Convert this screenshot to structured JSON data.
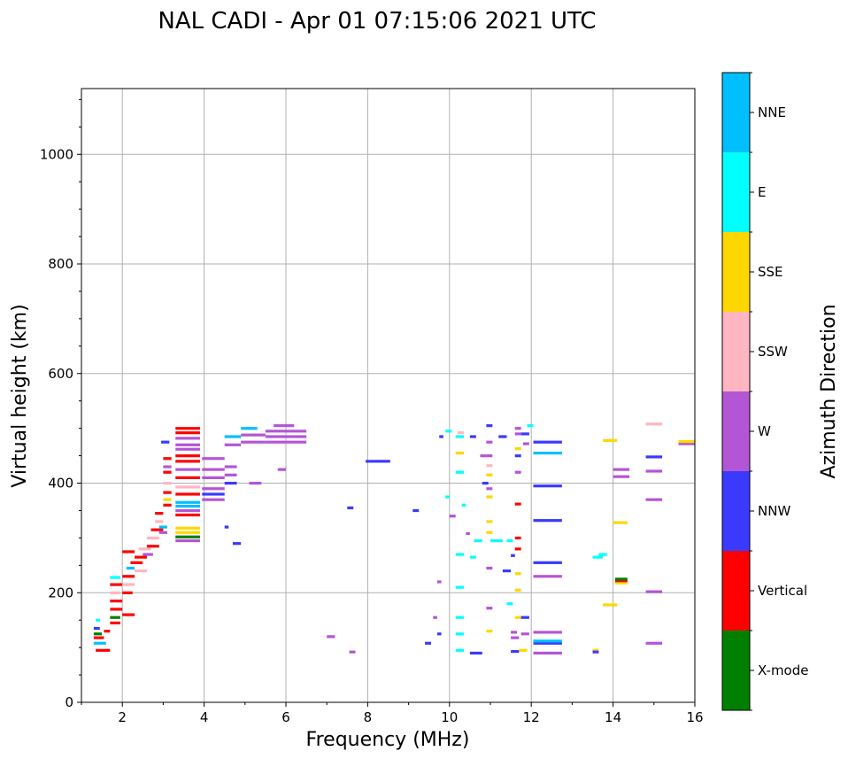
{
  "chart_data": {
    "type": "scatter",
    "title": "NAL CADI - Apr 01 07:15:06 2021 UTC",
    "xlabel": "Frequency (MHz)",
    "ylabel": "Virtual height (km)",
    "xlim": [
      1,
      16
    ],
    "ylim": [
      0,
      1120
    ],
    "xticks": [
      2,
      4,
      6,
      8,
      10,
      12,
      14,
      16
    ],
    "yticks": [
      0,
      200,
      400,
      600,
      800,
      1000
    ],
    "grid": true,
    "colorbar": {
      "label": "Azimuth Direction",
      "categories": [
        {
          "name": "X-mode",
          "color": "#008000"
        },
        {
          "name": "Vertical",
          "color": "#ff0000"
        },
        {
          "name": "NNW",
          "color": "#3a3aff"
        },
        {
          "name": "W",
          "color": "#b455d6"
        },
        {
          "name": "SSW",
          "color": "#ffb6c1"
        },
        {
          "name": "SSE",
          "color": "#ffd700"
        },
        {
          "name": "E",
          "color": "#00ffff"
        },
        {
          "name": "NNE",
          "color": "#00bfff"
        }
      ]
    },
    "segments": [
      {
        "f0": 1.35,
        "f1": 1.7,
        "h": 95,
        "c": "Vertical"
      },
      {
        "f0": 1.3,
        "f1": 1.6,
        "h": 108,
        "c": "NNE"
      },
      {
        "f0": 1.3,
        "f1": 1.55,
        "h": 118,
        "c": "Vertical"
      },
      {
        "f0": 1.3,
        "f1": 1.5,
        "h": 125,
        "c": "X-mode"
      },
      {
        "f0": 1.3,
        "f1": 1.45,
        "h": 135,
        "c": "NNW"
      },
      {
        "f0": 1.55,
        "f1": 1.7,
        "h": 130,
        "c": "Vertical"
      },
      {
        "f0": 1.35,
        "f1": 1.45,
        "h": 150,
        "c": "E"
      },
      {
        "f0": 1.7,
        "f1": 1.95,
        "h": 145,
        "c": "Vertical"
      },
      {
        "f0": 1.7,
        "f1": 1.95,
        "h": 155,
        "c": "X-mode"
      },
      {
        "f0": 1.7,
        "f1": 2.0,
        "h": 170,
        "c": "Vertical"
      },
      {
        "f0": 1.7,
        "f1": 2.0,
        "h": 185,
        "c": "Vertical"
      },
      {
        "f0": 1.7,
        "f1": 1.95,
        "h": 200,
        "c": "SSW"
      },
      {
        "f0": 1.7,
        "f1": 2.0,
        "h": 215,
        "c": "Vertical"
      },
      {
        "f0": 1.7,
        "f1": 1.95,
        "h": 228,
        "c": "E"
      },
      {
        "f0": 2.0,
        "f1": 2.3,
        "h": 160,
        "c": "Vertical"
      },
      {
        "f0": 2.0,
        "f1": 2.25,
        "h": 200,
        "c": "Vertical"
      },
      {
        "f0": 2.0,
        "f1": 2.3,
        "h": 215,
        "c": "SSW"
      },
      {
        "f0": 2.0,
        "f1": 2.3,
        "h": 230,
        "c": "Vertical"
      },
      {
        "f0": 2.1,
        "f1": 2.3,
        "h": 245,
        "c": "NNE"
      },
      {
        "f0": 2.2,
        "f1": 2.5,
        "h": 255,
        "c": "Vertical"
      },
      {
        "f0": 2.3,
        "f1": 2.6,
        "h": 240,
        "c": "SSW"
      },
      {
        "f0": 2.0,
        "f1": 2.3,
        "h": 275,
        "c": "Vertical"
      },
      {
        "f0": 2.3,
        "f1": 2.6,
        "h": 265,
        "c": "Vertical"
      },
      {
        "f0": 2.4,
        "f1": 2.7,
        "h": 280,
        "c": "SSW"
      },
      {
        "f0": 2.5,
        "f1": 2.75,
        "h": 270,
        "c": "W"
      },
      {
        "f0": 2.6,
        "f1": 2.9,
        "h": 285,
        "c": "Vertical"
      },
      {
        "f0": 2.6,
        "f1": 2.9,
        "h": 300,
        "c": "SSW"
      },
      {
        "f0": 2.7,
        "f1": 3.0,
        "h": 315,
        "c": "Vertical"
      },
      {
        "f0": 2.8,
        "f1": 3.0,
        "h": 330,
        "c": "SSW"
      },
      {
        "f0": 2.8,
        "f1": 3.0,
        "h": 345,
        "c": "Vertical"
      },
      {
        "f0": 2.9,
        "f1": 3.1,
        "h": 310,
        "c": "W"
      },
      {
        "f0": 2.9,
        "f1": 3.1,
        "h": 320,
        "c": "NNE"
      },
      {
        "f0": 3.0,
        "f1": 3.2,
        "h": 360,
        "c": "Vertical"
      },
      {
        "f0": 3.0,
        "f1": 3.2,
        "h": 370,
        "c": "SSE"
      },
      {
        "f0": 3.0,
        "f1": 3.2,
        "h": 383,
        "c": "Vertical"
      },
      {
        "f0": 3.0,
        "f1": 3.2,
        "h": 400,
        "c": "SSW"
      },
      {
        "f0": 3.0,
        "f1": 3.2,
        "h": 420,
        "c": "Vertical"
      },
      {
        "f0": 3.0,
        "f1": 3.2,
        "h": 430,
        "c": "W"
      },
      {
        "f0": 3.0,
        "f1": 3.2,
        "h": 445,
        "c": "Vertical"
      },
      {
        "f0": 2.95,
        "f1": 3.15,
        "h": 475,
        "c": "NNW"
      },
      {
        "f0": 3.3,
        "f1": 3.9,
        "h": 295,
        "c": "W"
      },
      {
        "f0": 3.3,
        "f1": 3.9,
        "h": 302,
        "c": "X-mode"
      },
      {
        "f0": 3.3,
        "f1": 3.9,
        "h": 310,
        "c": "SSE"
      },
      {
        "f0": 3.3,
        "f1": 3.9,
        "h": 318,
        "c": "SSE"
      },
      {
        "f0": 3.3,
        "f1": 3.9,
        "h": 342,
        "c": "Vertical"
      },
      {
        "f0": 3.3,
        "f1": 3.9,
        "h": 350,
        "c": "W"
      },
      {
        "f0": 3.3,
        "f1": 3.9,
        "h": 358,
        "c": "NNE"
      },
      {
        "f0": 3.3,
        "f1": 3.9,
        "h": 365,
        "c": "NNE"
      },
      {
        "f0": 3.3,
        "f1": 3.9,
        "h": 380,
        "c": "Vertical"
      },
      {
        "f0": 3.3,
        "f1": 3.9,
        "h": 393,
        "c": "SSW"
      },
      {
        "f0": 3.3,
        "f1": 3.9,
        "h": 410,
        "c": "Vertical"
      },
      {
        "f0": 3.3,
        "f1": 3.9,
        "h": 425,
        "c": "W"
      },
      {
        "f0": 3.3,
        "f1": 3.9,
        "h": 440,
        "c": "Vertical"
      },
      {
        "f0": 3.3,
        "f1": 3.9,
        "h": 450,
        "c": "Vertical"
      },
      {
        "f0": 3.3,
        "f1": 3.9,
        "h": 462,
        "c": "W"
      },
      {
        "f0": 3.3,
        "f1": 3.9,
        "h": 470,
        "c": "W"
      },
      {
        "f0": 3.3,
        "f1": 3.9,
        "h": 482,
        "c": "W"
      },
      {
        "f0": 3.3,
        "f1": 3.9,
        "h": 492,
        "c": "Vertical"
      },
      {
        "f0": 3.3,
        "f1": 3.9,
        "h": 500,
        "c": "Vertical"
      },
      {
        "f0": 3.95,
        "f1": 4.5,
        "h": 370,
        "c": "W"
      },
      {
        "f0": 3.95,
        "f1": 4.5,
        "h": 380,
        "c": "NNW"
      },
      {
        "f0": 3.95,
        "f1": 4.5,
        "h": 390,
        "c": "W"
      },
      {
        "f0": 3.95,
        "f1": 4.5,
        "h": 410,
        "c": "W"
      },
      {
        "f0": 3.95,
        "f1": 4.5,
        "h": 425,
        "c": "W"
      },
      {
        "f0": 3.95,
        "f1": 4.5,
        "h": 445,
        "c": "W"
      },
      {
        "f0": 4.5,
        "f1": 4.8,
        "h": 400,
        "c": "NNW"
      },
      {
        "f0": 4.5,
        "f1": 4.8,
        "h": 415,
        "c": "W"
      },
      {
        "f0": 4.5,
        "f1": 4.8,
        "h": 430,
        "c": "W"
      },
      {
        "f0": 4.5,
        "f1": 4.9,
        "h": 470,
        "c": "W"
      },
      {
        "f0": 4.5,
        "f1": 4.9,
        "h": 485,
        "c": "NNE"
      },
      {
        "f0": 4.7,
        "f1": 4.9,
        "h": 290,
        "c": "NNW"
      },
      {
        "f0": 4.5,
        "f1": 4.6,
        "h": 320,
        "c": "NNW"
      },
      {
        "f0": 4.9,
        "f1": 5.5,
        "h": 475,
        "c": "W"
      },
      {
        "f0": 4.9,
        "f1": 5.5,
        "h": 488,
        "c": "W"
      },
      {
        "f0": 4.9,
        "f1": 5.3,
        "h": 500,
        "c": "NNE"
      },
      {
        "f0": 5.5,
        "f1": 6.5,
        "h": 475,
        "c": "W"
      },
      {
        "f0": 5.5,
        "f1": 6.5,
        "h": 485,
        "c": "W"
      },
      {
        "f0": 5.5,
        "f1": 6.5,
        "h": 495,
        "c": "W"
      },
      {
        "f0": 5.7,
        "f1": 6.2,
        "h": 505,
        "c": "W"
      },
      {
        "f0": 5.1,
        "f1": 5.4,
        "h": 400,
        "c": "W"
      },
      {
        "f0": 5.8,
        "f1": 6.0,
        "h": 425,
        "c": "W"
      },
      {
        "f0": 7.0,
        "f1": 7.2,
        "h": 120,
        "c": "W"
      },
      {
        "f0": 7.55,
        "f1": 7.7,
        "h": 92,
        "c": "W"
      },
      {
        "f0": 7.5,
        "f1": 7.65,
        "h": 355,
        "c": "NNW"
      },
      {
        "f0": 7.95,
        "f1": 8.55,
        "h": 440,
        "c": "NNW"
      },
      {
        "f0": 9.1,
        "f1": 9.25,
        "h": 350,
        "c": "NNW"
      },
      {
        "f0": 9.4,
        "f1": 9.55,
        "h": 108,
        "c": "NNW"
      },
      {
        "f0": 9.6,
        "f1": 9.7,
        "h": 155,
        "c": "W"
      },
      {
        "f0": 9.7,
        "f1": 9.8,
        "h": 220,
        "c": "W"
      },
      {
        "f0": 9.75,
        "f1": 9.85,
        "h": 485,
        "c": "NNW"
      },
      {
        "f0": 9.7,
        "f1": 9.8,
        "h": 125,
        "c": "NNW"
      },
      {
        "f0": 9.9,
        "f1": 10.0,
        "h": 375,
        "c": "E"
      },
      {
        "f0": 9.9,
        "f1": 10.05,
        "h": 495,
        "c": "E"
      },
      {
        "f0": 10.0,
        "f1": 10.15,
        "h": 340,
        "c": "W"
      },
      {
        "f0": 10.15,
        "f1": 10.35,
        "h": 95,
        "c": "E"
      },
      {
        "f0": 10.15,
        "f1": 10.35,
        "h": 125,
        "c": "E"
      },
      {
        "f0": 10.15,
        "f1": 10.35,
        "h": 155,
        "c": "E"
      },
      {
        "f0": 10.15,
        "f1": 10.35,
        "h": 210,
        "c": "E"
      },
      {
        "f0": 10.15,
        "f1": 10.35,
        "h": 270,
        "c": "E"
      },
      {
        "f0": 10.15,
        "f1": 10.35,
        "h": 420,
        "c": "E"
      },
      {
        "f0": 10.15,
        "f1": 10.35,
        "h": 455,
        "c": "SSE"
      },
      {
        "f0": 10.15,
        "f1": 10.35,
        "h": 485,
        "c": "E"
      },
      {
        "f0": 10.2,
        "f1": 10.35,
        "h": 492,
        "c": "SSW"
      },
      {
        "f0": 10.3,
        "f1": 10.4,
        "h": 360,
        "c": "E"
      },
      {
        "f0": 10.4,
        "f1": 10.5,
        "h": 308,
        "c": "W"
      },
      {
        "f0": 10.5,
        "f1": 10.65,
        "h": 265,
        "c": "E"
      },
      {
        "f0": 10.5,
        "f1": 10.8,
        "h": 90,
        "c": "NNW"
      },
      {
        "f0": 10.5,
        "f1": 10.65,
        "h": 485,
        "c": "NNW"
      },
      {
        "f0": 10.6,
        "f1": 10.8,
        "h": 295,
        "c": "E"
      },
      {
        "f0": 10.75,
        "f1": 10.9,
        "h": 450,
        "c": "W"
      },
      {
        "f0": 10.8,
        "f1": 10.95,
        "h": 400,
        "c": "NNW"
      },
      {
        "f0": 10.9,
        "f1": 11.05,
        "h": 130,
        "c": "SSE"
      },
      {
        "f0": 10.9,
        "f1": 11.05,
        "h": 172,
        "c": "W"
      },
      {
        "f0": 10.9,
        "f1": 11.05,
        "h": 245,
        "c": "W"
      },
      {
        "f0": 10.9,
        "f1": 11.05,
        "h": 310,
        "c": "SSE"
      },
      {
        "f0": 10.9,
        "f1": 11.05,
        "h": 330,
        "c": "SSE"
      },
      {
        "f0": 10.9,
        "f1": 11.05,
        "h": 375,
        "c": "SSE"
      },
      {
        "f0": 10.9,
        "f1": 11.05,
        "h": 390,
        "c": "W"
      },
      {
        "f0": 10.9,
        "f1": 11.05,
        "h": 415,
        "c": "SSE"
      },
      {
        "f0": 10.9,
        "f1": 11.05,
        "h": 432,
        "c": "SSW"
      },
      {
        "f0": 10.9,
        "f1": 11.05,
        "h": 450,
        "c": "W"
      },
      {
        "f0": 10.9,
        "f1": 11.05,
        "h": 475,
        "c": "W"
      },
      {
        "f0": 10.9,
        "f1": 11.05,
        "h": 505,
        "c": "NNW"
      },
      {
        "f0": 11.0,
        "f1": 11.3,
        "h": 295,
        "c": "E"
      },
      {
        "f0": 11.3,
        "f1": 11.5,
        "h": 240,
        "c": "NNW"
      },
      {
        "f0": 11.2,
        "f1": 11.4,
        "h": 485,
        "c": "NNW"
      },
      {
        "f0": 11.4,
        "f1": 11.55,
        "h": 180,
        "c": "E"
      },
      {
        "f0": 11.4,
        "f1": 11.55,
        "h": 295,
        "c": "E"
      },
      {
        "f0": 11.5,
        "f1": 11.7,
        "h": 93,
        "c": "NNW"
      },
      {
        "f0": 11.5,
        "f1": 11.7,
        "h": 118,
        "c": "W"
      },
      {
        "f0": 11.5,
        "f1": 11.65,
        "h": 128,
        "c": "W"
      },
      {
        "f0": 11.5,
        "f1": 11.6,
        "h": 268,
        "c": "NNW"
      },
      {
        "f0": 11.6,
        "f1": 11.75,
        "h": 155,
        "c": "SSE"
      },
      {
        "f0": 11.6,
        "f1": 11.75,
        "h": 205,
        "c": "SSE"
      },
      {
        "f0": 11.6,
        "f1": 11.75,
        "h": 235,
        "c": "SSE"
      },
      {
        "f0": 11.6,
        "f1": 11.75,
        "h": 280,
        "c": "Vertical"
      },
      {
        "f0": 11.6,
        "f1": 11.75,
        "h": 300,
        "c": "Vertical"
      },
      {
        "f0": 11.6,
        "f1": 11.75,
        "h": 362,
        "c": "Vertical"
      },
      {
        "f0": 11.6,
        "f1": 11.75,
        "h": 420,
        "c": "W"
      },
      {
        "f0": 11.6,
        "f1": 11.75,
        "h": 450,
        "c": "NNW"
      },
      {
        "f0": 11.6,
        "f1": 11.75,
        "h": 463,
        "c": "SSE"
      },
      {
        "f0": 11.6,
        "f1": 11.75,
        "h": 490,
        "c": "W"
      },
      {
        "f0": 11.6,
        "f1": 11.75,
        "h": 500,
        "c": "W"
      },
      {
        "f0": 11.7,
        "f1": 11.9,
        "h": 95,
        "c": "SSE"
      },
      {
        "f0": 11.75,
        "f1": 11.95,
        "h": 125,
        "c": "W"
      },
      {
        "f0": 11.75,
        "f1": 11.95,
        "h": 155,
        "c": "NNW"
      },
      {
        "f0": 11.75,
        "f1": 11.95,
        "h": 490,
        "c": "NNW"
      },
      {
        "f0": 11.8,
        "f1": 11.95,
        "h": 472,
        "c": "W"
      },
      {
        "f0": 11.9,
        "f1": 12.05,
        "h": 505,
        "c": "E"
      },
      {
        "f0": 12.05,
        "f1": 12.75,
        "h": 90,
        "c": "W"
      },
      {
        "f0": 12.05,
        "f1": 12.75,
        "h": 108,
        "c": "NNW"
      },
      {
        "f0": 12.05,
        "f1": 12.75,
        "h": 112,
        "c": "NNE"
      },
      {
        "f0": 12.05,
        "f1": 12.75,
        "h": 128,
        "c": "W"
      },
      {
        "f0": 12.05,
        "f1": 12.75,
        "h": 230,
        "c": "W"
      },
      {
        "f0": 12.05,
        "f1": 12.75,
        "h": 255,
        "c": "NNW"
      },
      {
        "f0": 12.05,
        "f1": 12.75,
        "h": 332,
        "c": "NNW"
      },
      {
        "f0": 12.05,
        "f1": 12.75,
        "h": 395,
        "c": "NNW"
      },
      {
        "f0": 12.05,
        "f1": 12.75,
        "h": 455,
        "c": "NNE"
      },
      {
        "f0": 12.05,
        "f1": 12.75,
        "h": 475,
        "c": "NNW"
      },
      {
        "f0": 13.5,
        "f1": 13.65,
        "h": 95,
        "c": "SSE"
      },
      {
        "f0": 13.5,
        "f1": 13.65,
        "h": 92,
        "c": "NNW"
      },
      {
        "f0": 13.5,
        "f1": 13.75,
        "h": 265,
        "c": "E"
      },
      {
        "f0": 13.65,
        "f1": 13.85,
        "h": 270,
        "c": "E"
      },
      {
        "f0": 13.75,
        "f1": 14.1,
        "h": 178,
        "c": "SSE"
      },
      {
        "f0": 13.75,
        "f1": 14.1,
        "h": 478,
        "c": "SSE"
      },
      {
        "f0": 14.0,
        "f1": 14.4,
        "h": 412,
        "c": "W"
      },
      {
        "f0": 14.0,
        "f1": 14.4,
        "h": 425,
        "c": "W"
      },
      {
        "f0": 14.0,
        "f1": 14.35,
        "h": 328,
        "c": "SSE"
      },
      {
        "f0": 14.05,
        "f1": 14.35,
        "h": 218,
        "c": "SSE"
      },
      {
        "f0": 14.05,
        "f1": 14.35,
        "h": 222,
        "c": "Vertical"
      },
      {
        "f0": 14.05,
        "f1": 14.35,
        "h": 225,
        "c": "X-mode"
      },
      {
        "f0": 14.8,
        "f1": 15.2,
        "h": 108,
        "c": "W"
      },
      {
        "f0": 14.8,
        "f1": 15.2,
        "h": 202,
        "c": "W"
      },
      {
        "f0": 14.8,
        "f1": 15.2,
        "h": 370,
        "c": "W"
      },
      {
        "f0": 14.8,
        "f1": 15.2,
        "h": 422,
        "c": "W"
      },
      {
        "f0": 14.8,
        "f1": 15.2,
        "h": 448,
        "c": "NNW"
      },
      {
        "f0": 14.8,
        "f1": 15.2,
        "h": 508,
        "c": "SSW"
      },
      {
        "f0": 15.6,
        "f1": 16.0,
        "h": 472,
        "c": "W"
      },
      {
        "f0": 15.6,
        "f1": 16.0,
        "h": 476,
        "c": "SSE"
      }
    ]
  }
}
